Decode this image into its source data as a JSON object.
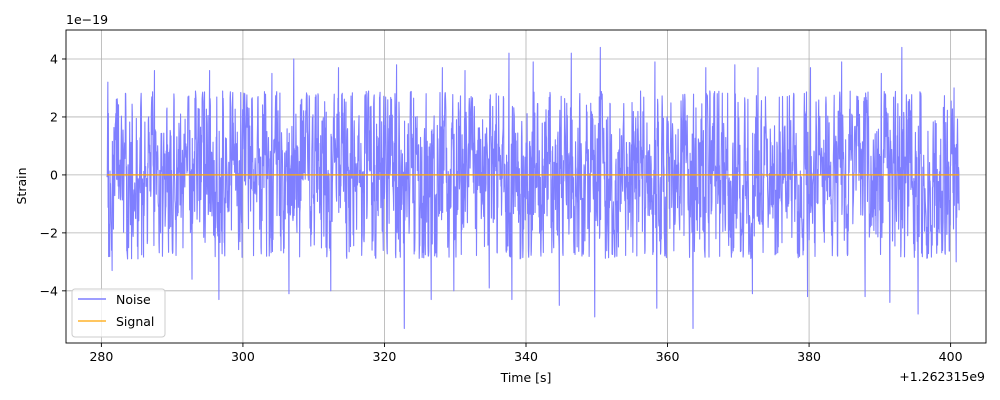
{
  "chart_data": {
    "type": "line",
    "xlabel": "Time [s]",
    "ylabel": "Strain",
    "x_offset_label": "+1.262315e9",
    "y_scale_label": "1e−19",
    "xlim": [
      275,
      405
    ],
    "ylim": [
      -5.8,
      5.0
    ],
    "x_ticks": [
      280,
      300,
      320,
      340,
      360,
      380,
      400
    ],
    "x_tick_labels": [
      "280",
      "300",
      "320",
      "340",
      "360",
      "380",
      "400"
    ],
    "y_ticks": [
      -4,
      -2,
      0,
      2,
      4
    ],
    "y_tick_labels": [
      "−4",
      "−2",
      "0",
      "2",
      "4"
    ],
    "grid": true,
    "legend_position": "lower-left",
    "series": [
      {
        "name": "Noise",
        "color": "#7f7fff",
        "x_range": [
          280.8,
          401.2
        ],
        "typical_amplitude": 2.2,
        "peaks_max": [
          [
            280.9,
            3.2
          ],
          [
            287.5,
            3.6
          ],
          [
            295.3,
            3.6
          ],
          [
            304.1,
            3.5
          ],
          [
            307.2,
            4.0
          ],
          [
            313.5,
            3.7
          ],
          [
            321.7,
            3.8
          ],
          [
            328.2,
            3.7
          ],
          [
            331.4,
            3.6
          ],
          [
            337.6,
            4.2
          ],
          [
            341.0,
            3.9
          ],
          [
            346.4,
            4.2
          ],
          [
            350.5,
            4.4
          ],
          [
            358.2,
            3.9
          ],
          [
            365.4,
            3.7
          ],
          [
            369.5,
            3.8
          ],
          [
            372.8,
            3.7
          ],
          [
            380.2,
            3.7
          ],
          [
            384.6,
            3.9
          ],
          [
            390.2,
            3.5
          ],
          [
            393.1,
            4.4
          ],
          [
            400.5,
            3.0
          ]
        ],
        "peaks_min": [
          [
            281.5,
            -3.3
          ],
          [
            292.8,
            -3.6
          ],
          [
            296.6,
            -4.3
          ],
          [
            306.5,
            -4.1
          ],
          [
            312.4,
            -4.0
          ],
          [
            322.8,
            -5.3
          ],
          [
            326.6,
            -4.3
          ],
          [
            329.8,
            -4.0
          ],
          [
            334.8,
            -3.9
          ],
          [
            338.0,
            -4.3
          ],
          [
            344.7,
            -4.5
          ],
          [
            349.7,
            -4.9
          ],
          [
            358.5,
            -4.6
          ],
          [
            363.6,
            -5.3
          ],
          [
            372.0,
            -4.1
          ],
          [
            379.8,
            -4.2
          ],
          [
            387.9,
            -4.2
          ],
          [
            391.4,
            -4.4
          ],
          [
            395.4,
            -4.8
          ],
          [
            400.8,
            -3.0
          ]
        ]
      },
      {
        "name": "Signal",
        "color": "#ffa500",
        "x": [
          280.8,
          401.2
        ],
        "y": [
          0,
          0
        ]
      }
    ]
  }
}
